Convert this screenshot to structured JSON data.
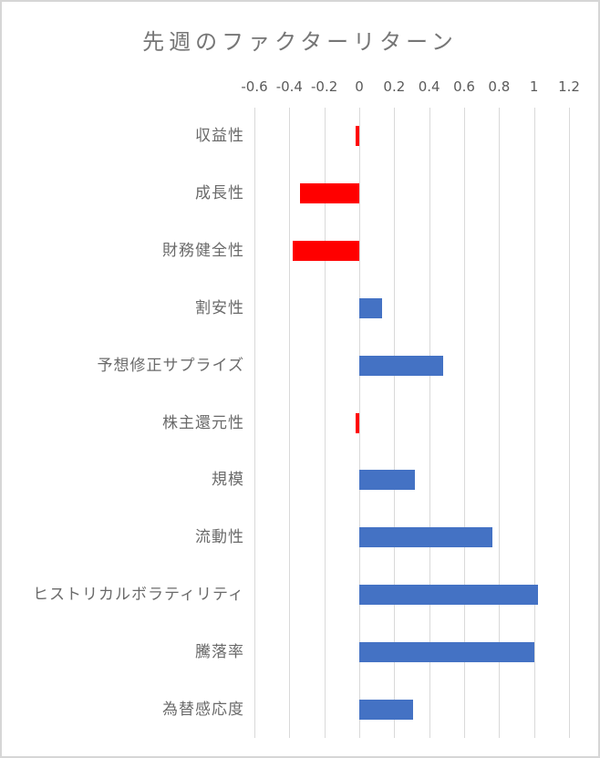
{
  "chart_data": {
    "type": "bar",
    "orientation": "horizontal",
    "title": "先週のファクターリターン",
    "categories": [
      "収益性",
      "成長性",
      "財務健全性",
      "割安性",
      "予想修正サプライズ",
      "株主還元性",
      "規模",
      "流動性",
      "ヒストリカルボラティリティ",
      "騰落率",
      "為替感応度"
    ],
    "values": [
      -0.02,
      -0.34,
      -0.38,
      0.13,
      0.48,
      -0.02,
      0.32,
      0.76,
      1.02,
      1.0,
      0.31
    ],
    "xlim": [
      -0.6,
      1.2
    ],
    "x_ticks": [
      -0.6,
      -0.4,
      -0.2,
      0,
      0.2,
      0.4,
      0.6,
      0.8,
      1,
      1.2
    ],
    "x_tick_labels": [
      "-0.6",
      "-0.4",
      "-0.2",
      "0",
      "0.2",
      "0.4",
      "0.6",
      "0.8",
      "1",
      "1.2"
    ],
    "grid": true,
    "legend_position": "none",
    "colors": {
      "positive": "#FF0000",
      "negative_note": "red bars are the negative values",
      "bar_positive": "#4472C4",
      "bar_negative": "#FF0000",
      "gridline": "#D9D9D9",
      "title_text": "#767676",
      "category_text": "#6A6A6A",
      "tick_text": "#5B5B5B",
      "background": "#FFFFFF",
      "frame_border": "#D6D6D6"
    }
  }
}
